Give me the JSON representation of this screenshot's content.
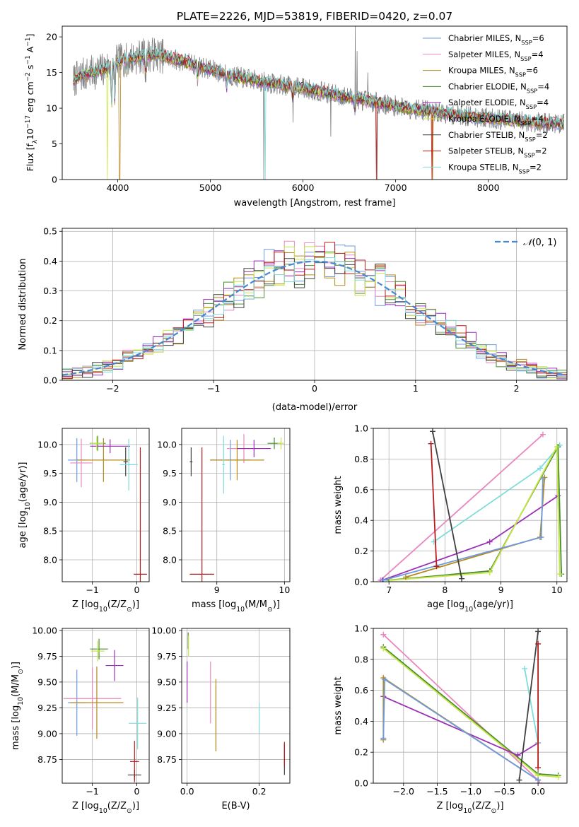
{
  "title": "PLATE=2226, MJD=53819, FIBERID=0420, z=0.07",
  "colors": {
    "grid": "#b0b0b0",
    "data_gray": "#7f7f7f",
    "normal_curve": "#4a86d6"
  },
  "models": [
    {
      "label": "Chabrier MILES, N",
      "sub": "SSP",
      "n": "=6",
      "color": "#6f9ae0"
    },
    {
      "label": "Salpeter MILES, N",
      "sub": "SSP",
      "n": "=4",
      "color": "#e888bf"
    },
    {
      "label": "Kroupa MILES, N",
      "sub": "SSP",
      "n": "=6",
      "color": "#b58a1a"
    },
    {
      "label": "Chabrier ELODIE, N",
      "sub": "SSP",
      "n": "=4",
      "color": "#4a8b2e"
    },
    {
      "label": "Salpeter ELODIE, N",
      "sub": "SSP",
      "n": "=4",
      "color": "#9b2fb8"
    },
    {
      "label": "Kroupa ELODIE, N",
      "sub": "SSP",
      "n": "=4",
      "color": "#c6e64a"
    },
    {
      "label": "Chabrier STELIB, N",
      "sub": "SSP",
      "n": "=2",
      "color": "#404040"
    },
    {
      "label": "Salpeter STELIB, N",
      "sub": "SSP",
      "n": "=2",
      "color": "#b81c1c"
    },
    {
      "label": "Kroupa STELIB, N",
      "sub": "SSP",
      "n": "=2",
      "color": "#7fdcdc"
    }
  ],
  "chart_data": [
    {
      "type": "line",
      "id": "spectrum",
      "xlabel": "wavelength [Angstrom, rest frame]",
      "ylabel_parts": [
        "Flux [f",
        "λ",
        "10",
        "−17",
        " erg cm",
        "−2",
        " s",
        "−1",
        " A",
        "−1",
        "]"
      ],
      "xlim": [
        3400,
        8850
      ],
      "ylim": [
        0,
        21.5
      ],
      "xticks": [
        4000,
        5000,
        6000,
        7000,
        8000
      ],
      "yticks": [
        0,
        5,
        10,
        15,
        20
      ],
      "continuum_knots": [
        [
          3520,
          13.8
        ],
        [
          3600,
          14.6
        ],
        [
          3800,
          15.2
        ],
        [
          4050,
          16.8
        ],
        [
          4400,
          17.6
        ],
        [
          4800,
          16.2
        ],
        [
          5200,
          14.6
        ],
        [
          5600,
          13.6
        ],
        [
          6000,
          12.8
        ],
        [
          6500,
          11.5
        ],
        [
          7000,
          10.3
        ],
        [
          7500,
          9.3
        ],
        [
          8000,
          8.6
        ],
        [
          8500,
          8.0
        ],
        [
          8800,
          7.8
        ]
      ],
      "absorption_lines": [
        [
          3933,
          7
        ],
        [
          3968,
          5
        ],
        [
          4101,
          2
        ],
        [
          4300,
          3
        ],
        [
          4861,
          2
        ],
        [
          5175,
          2
        ],
        [
          5890,
          2
        ],
        [
          6563,
          2
        ]
      ],
      "gray_spikes": [
        [
          5577,
          0
        ],
        [
          5892,
          8
        ],
        [
          6300,
          6
        ],
        [
          6563,
          21.5
        ],
        [
          6583,
          18
        ],
        [
          6700,
          15
        ],
        [
          6800,
          0
        ]
      ],
      "model_spikes": [
        [
          3890,
          0,
          5
        ],
        [
          4020,
          0,
          2
        ],
        [
          5590,
          0,
          8
        ],
        [
          6795,
          0,
          7
        ],
        [
          7390,
          0,
          7
        ],
        [
          7400,
          0,
          2
        ]
      ]
    },
    {
      "type": "line",
      "id": "residuals",
      "xlabel": "(data-model)/error",
      "ylabel": "Normed distribution",
      "xlim": [
        -2.5,
        2.5
      ],
      "ylim": [
        0,
        0.51
      ],
      "xticks": [
        -2,
        -1,
        0,
        1,
        2
      ],
      "yticks": [
        0.0,
        0.1,
        0.2,
        0.3,
        0.4,
        0.5
      ],
      "legend": "top-right",
      "curve_label": "(0, 1)",
      "bin_width": 0.1
    },
    {
      "type": "scatter",
      "id": "age-vs-Z",
      "xlabel_parts": [
        "Z [log",
        "10",
        "(Z/Z",
        "⊙",
        ")]"
      ],
      "ylabel_parts": [
        "age  [log",
        "10",
        "(age/yr)]"
      ],
      "xlim": [
        -1.68,
        0.28
      ],
      "ylim": [
        7.62,
        10.28
      ],
      "xticks": [
        -1,
        0
      ],
      "yticks": [
        8.0,
        8.5,
        9.0,
        9.5,
        10.0
      ],
      "points": [
        {
          "m": 0,
          "x": -1.35,
          "y": 9.73,
          "ex": 0.2,
          "ey": 0.38
        },
        {
          "m": 1,
          "x": -1.25,
          "y": 9.68,
          "ex": 0.25,
          "ey": 0.42
        },
        {
          "m": 2,
          "x": -0.75,
          "y": 9.73,
          "ex": 0.6,
          "ey": 0.38
        },
        {
          "m": 3,
          "x": -0.88,
          "y": 10.02,
          "ex": 0.18,
          "ey": 0.13
        },
        {
          "m": 4,
          "x": -0.6,
          "y": 9.97,
          "ex": 0.45,
          "ey": 0.12
        },
        {
          "m": 5,
          "x": -0.9,
          "y": 10.02,
          "ex": 0.15,
          "ey": 0.12
        },
        {
          "m": 6,
          "x": -0.25,
          "y": 9.7,
          "ex": 0.05,
          "ey": 0.25
        },
        {
          "m": 7,
          "x": 0.08,
          "y": 7.75,
          "ex": 0.15,
          "ey": 2.2
        },
        {
          "m": 8,
          "x": -0.18,
          "y": 9.65,
          "ex": 0.2,
          "ey": 0.45
        }
      ]
    },
    {
      "type": "scatter",
      "id": "age-vs-mass",
      "xlabel_parts": [
        "mass [log",
        "10",
        "(M/M",
        "⊙",
        ")]"
      ],
      "ylabel_parts": [],
      "xlim": [
        8.48,
        10.08
      ],
      "ylim": [
        7.62,
        10.28
      ],
      "xticks": [
        9,
        10
      ],
      "yticks": [
        8.0,
        8.5,
        9.0,
        9.5,
        10.0
      ],
      "points": [
        {
          "m": 0,
          "x": 9.2,
          "y": 9.73,
          "ex": 0.3,
          "ey": 0.35
        },
        {
          "m": 1,
          "x": 9.4,
          "y": 9.93,
          "ex": 0.25,
          "ey": 0.25
        },
        {
          "m": 2,
          "x": 9.3,
          "y": 9.73,
          "ex": 0.4,
          "ey": 0.35
        },
        {
          "m": 3,
          "x": 9.85,
          "y": 10.02,
          "ex": 0.1,
          "ey": 0.1
        },
        {
          "m": 4,
          "x": 9.55,
          "y": 9.93,
          "ex": 0.25,
          "ey": 0.15
        },
        {
          "m": 5,
          "x": 9.95,
          "y": 10.02,
          "ex": 0.05,
          "ey": 0.1
        },
        {
          "m": 6,
          "x": 8.62,
          "y": 9.7,
          "ex": 0.02,
          "ey": 0.25
        },
        {
          "m": 7,
          "x": 8.78,
          "y": 7.75,
          "ex": 0.18,
          "ey": 2.2
        },
        {
          "m": 8,
          "x": 9.1,
          "y": 9.65,
          "ex": 0.02,
          "ey": 0.5
        }
      ]
    },
    {
      "type": "line",
      "id": "weight-vs-age",
      "xlabel_parts": [
        "age  [log",
        "10",
        "(age/yr)]"
      ],
      "ylabel": "mass weight",
      "xlim": [
        6.72,
        10.18
      ],
      "ylim": [
        0,
        1
      ],
      "xticks": [
        7,
        8,
        9,
        10
      ],
      "yticks": [
        0.0,
        0.2,
        0.4,
        0.6,
        0.8,
        1.0
      ],
      "series": [
        {
          "m": 1,
          "x": [
            6.85,
            9.75
          ],
          "y": [
            0.01,
            0.96
          ]
        },
        {
          "m": 8,
          "x": [
            7.8,
            9.7,
            10.05
          ],
          "y": [
            0.26,
            0.74,
            0.89
          ]
        },
        {
          "m": 4,
          "x": [
            6.88,
            8.8,
            10.02
          ],
          "y": [
            0.01,
            0.26,
            0.56
          ]
        },
        {
          "m": 3,
          "x": [
            7.0,
            8.8,
            10.02,
            10.08
          ],
          "y": [
            0.01,
            0.07,
            0.88,
            0.05
          ]
        },
        {
          "m": 5,
          "x": [
            7.05,
            8.8,
            10.0,
            10.05
          ],
          "y": [
            0.01,
            0.06,
            0.88,
            0.05
          ]
        },
        {
          "m": 2,
          "x": [
            7.3,
            9.7,
            9.78
          ],
          "y": [
            0.03,
            0.29,
            0.68
          ]
        },
        {
          "m": 0,
          "x": [
            6.9,
            9.72,
            9.75
          ],
          "y": [
            0.01,
            0.29,
            0.67
          ]
        },
        {
          "m": 6,
          "x": [
            7.78,
            8.3
          ],
          "y": [
            0.98,
            0.02
          ]
        },
        {
          "m": 7,
          "x": [
            7.75,
            7.85
          ],
          "y": [
            0.9,
            0.1
          ]
        }
      ]
    },
    {
      "type": "scatter",
      "id": "mass-vs-Z",
      "xlabel_parts": [
        "Z [log",
        "10",
        "(Z/Z",
        "⊙",
        ")]"
      ],
      "ylabel_parts": [
        "mass [log",
        "10",
        "(M/M",
        "⊙",
        ")]"
      ],
      "xlim": [
        -1.68,
        0.28
      ],
      "ylim": [
        8.52,
        10.02
      ],
      "xticks": [
        -1,
        0
      ],
      "yticks": [
        8.75,
        9.0,
        9.25,
        9.5,
        9.75,
        10.0
      ],
      "points": [
        {
          "m": 0,
          "x": -1.35,
          "y": 9.3,
          "ex": 0.2,
          "ey": 0.32
        },
        {
          "m": 1,
          "x": -1.0,
          "y": 9.34,
          "ex": 0.65,
          "ey": 0.3
        },
        {
          "m": 2,
          "x": -0.9,
          "y": 9.3,
          "ex": 0.6,
          "ey": 0.35
        },
        {
          "m": 3,
          "x": -0.85,
          "y": 9.82,
          "ex": 0.2,
          "ey": 0.1
        },
        {
          "m": 4,
          "x": -0.5,
          "y": 9.66,
          "ex": 0.2,
          "ey": 0.15
        },
        {
          "m": 5,
          "x": -0.88,
          "y": 9.8,
          "ex": 0.15,
          "ey": 0.1
        },
        {
          "m": 6,
          "x": -0.05,
          "y": 8.6,
          "ex": 0.15,
          "ey": 0.05
        },
        {
          "m": 7,
          "x": -0.05,
          "y": 8.73,
          "ex": 0.1,
          "ey": 0.2
        },
        {
          "m": 8,
          "x": 0.02,
          "y": 9.1,
          "ex": 0.2,
          "ey": 0.25
        }
      ]
    },
    {
      "type": "scatter",
      "id": "mass-vs-ebv",
      "xlabel": "E(B-V)",
      "ylabel_parts": [],
      "xlim": [
        -0.015,
        0.285
      ],
      "ylim": [
        8.52,
        10.02
      ],
      "xticks": [
        0.0,
        0.2
      ],
      "yticks": [
        8.75,
        9.0,
        9.25,
        9.5,
        9.75,
        10.0
      ],
      "points": [
        {
          "m": 0,
          "x": 0.08,
          "y": 9.15,
          "ex": 0,
          "ey": 0.32
        },
        {
          "m": 1,
          "x": 0.065,
          "y": 9.4,
          "ex": 0,
          "ey": 0.3
        },
        {
          "m": 2,
          "x": 0.08,
          "y": 9.18,
          "ex": 0,
          "ey": 0.35
        },
        {
          "m": 3,
          "x": 0.003,
          "y": 9.9,
          "ex": 0,
          "ey": 0.08
        },
        {
          "m": 4,
          "x": 0.0,
          "y": 9.5,
          "ex": 0,
          "ey": 0.2
        },
        {
          "m": 5,
          "x": 0.004,
          "y": 9.85,
          "ex": 0,
          "ey": 0.1
        },
        {
          "m": 6,
          "x": 0.27,
          "y": 8.75,
          "ex": 0,
          "ey": 0.15
        },
        {
          "m": 7,
          "x": 0.27,
          "y": 8.8,
          "ex": 0,
          "ey": 0.12
        },
        {
          "m": 8,
          "x": 0.2,
          "y": 9.15,
          "ex": 0,
          "ey": 0.15
        }
      ]
    },
    {
      "type": "line",
      "id": "weight-vs-Z",
      "xlabel_parts": [
        "Z [log",
        "10",
        "(Z/Z",
        "⊙",
        ")]"
      ],
      "ylabel": "mass weight",
      "xlim": [
        -2.45,
        0.43
      ],
      "ylim": [
        0,
        1
      ],
      "xticks": [
        -2.0,
        -1.5,
        -1.0,
        -0.5,
        0.0
      ],
      "yticks": [
        0.0,
        0.2,
        0.4,
        0.6,
        0.8,
        1.0
      ],
      "series": [
        {
          "m": 1,
          "x": [
            -2.3,
            0.0,
            0.02
          ],
          "y": [
            0.96,
            0.02,
            0.0
          ]
        },
        {
          "m": 3,
          "x": [
            -2.3,
            0.0,
            0.3
          ],
          "y": [
            0.88,
            0.06,
            0.05
          ]
        },
        {
          "m": 5,
          "x": [
            -2.3,
            0.0,
            0.3
          ],
          "y": [
            0.87,
            0.05,
            0.04
          ]
        },
        {
          "m": 4,
          "x": [
            -2.3,
            -0.3,
            0.0
          ],
          "y": [
            0.56,
            0.18,
            0.26
          ]
        },
        {
          "m": 2,
          "x": [
            -2.3,
            -2.3,
            0.0
          ],
          "y": [
            0.28,
            0.68,
            0.02
          ]
        },
        {
          "m": 0,
          "x": [
            -2.3,
            -2.28,
            0.0
          ],
          "y": [
            0.29,
            0.67,
            0.02
          ]
        },
        {
          "m": 8,
          "x": [
            -0.2,
            0.0
          ],
          "y": [
            0.74,
            0.26
          ]
        },
        {
          "m": 6,
          "x": [
            -0.28,
            0.0
          ],
          "y": [
            0.02,
            0.98
          ]
        },
        {
          "m": 7,
          "x": [
            0.0,
            0.0
          ],
          "y": [
            0.9,
            0.1
          ]
        }
      ]
    }
  ]
}
